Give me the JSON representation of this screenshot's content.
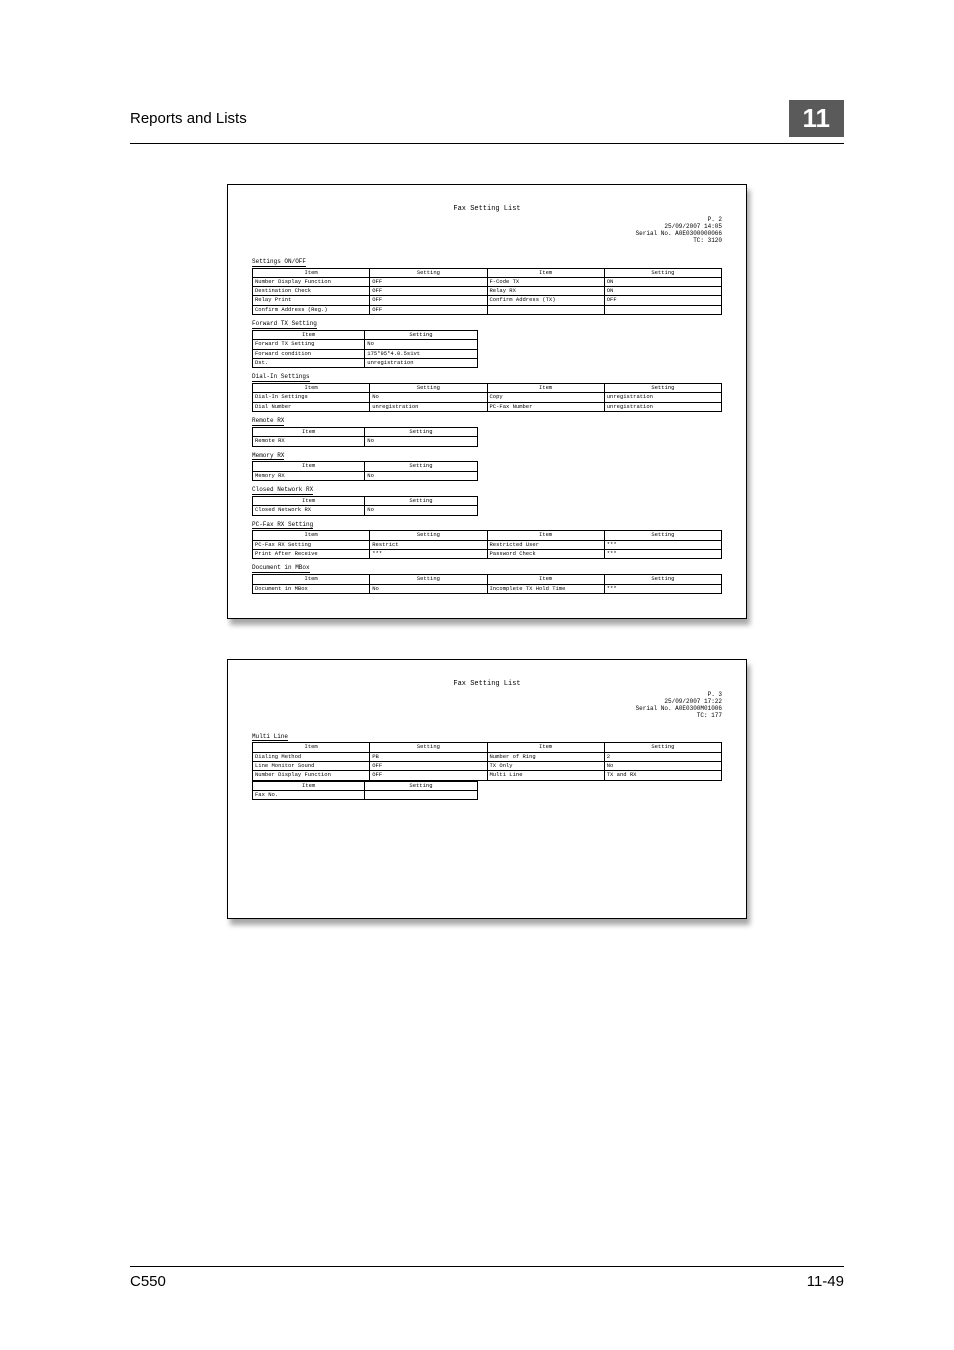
{
  "header": {
    "title": "Reports and Lists",
    "chapter": "11"
  },
  "footer": {
    "left": "C550",
    "right": "11-49"
  },
  "report1": {
    "title": "Fax Setting List",
    "page_meta": "P. 2\n25/09/2007 14:05\nSerial No.  A0E0300000066\nTC:      3120",
    "sections": [
      {
        "label": "Settings ON/OFF",
        "cols4": true,
        "headers": [
          "Item",
          "Setting",
          "Item",
          "Setting"
        ],
        "rows": [
          [
            "Number Display Function",
            "OFF",
            "F-Code TX",
            "ON"
          ],
          [
            "Destination Check",
            "OFF",
            "Relay RX",
            "ON"
          ],
          [
            "Relay Print",
            "OFF",
            "Confirm Address (TX)",
            "OFF"
          ],
          [
            "Confirm Address (Reg.)",
            "OFF",
            "",
            ""
          ]
        ]
      },
      {
        "label": "Forward TX Setting",
        "cols4": false,
        "headers": [
          "Item",
          "Setting"
        ],
        "rows": [
          [
            "Forward TX Setting",
            "No"
          ],
          [
            "Forward condition",
            "175*95*4.0.5s1vt"
          ],
          [
            "Dst.",
            "unregistration"
          ]
        ]
      },
      {
        "label": "Dial-In Settings",
        "cols4": true,
        "headers": [
          "Item",
          "Setting",
          "Item",
          "Setting"
        ],
        "rows": [
          [
            "Dial-In Settings",
            "No",
            "Copy",
            "unregistration"
          ],
          [
            "Dial Number",
            "unregistration",
            "PC-Fax Number",
            "unregistration"
          ]
        ]
      },
      {
        "label": "Remote RX",
        "cols4": false,
        "headers": [
          "Item",
          "Setting"
        ],
        "rows": [
          [
            "Remote RX",
            "No"
          ]
        ]
      },
      {
        "label": "Memory RX",
        "cols4": false,
        "headers": [
          "Item",
          "Setting"
        ],
        "rows": [
          [
            "Memory RX",
            "No"
          ]
        ]
      },
      {
        "label": "Closed Network RX",
        "cols4": false,
        "headers": [
          "Item",
          "Setting"
        ],
        "rows": [
          [
            "Closed Network RX",
            "No"
          ]
        ]
      },
      {
        "label": "PC-Fax RX Setting",
        "cols4": true,
        "headers": [
          "Item",
          "Setting",
          "Item",
          "Setting"
        ],
        "rows": [
          [
            "PC-Fax RX Setting",
            "Restrict",
            "Restricted User",
            "***"
          ],
          [
            "Print After Receive",
            "***",
            "Password Check",
            "***"
          ]
        ]
      },
      {
        "label": "Document in MBox",
        "cols4": true,
        "headers": [
          "Item",
          "Setting",
          "Item",
          "Setting"
        ],
        "rows": [
          [
            "Document in MBox",
            "No",
            "Incomplete TX Hold Time",
            "***"
          ]
        ]
      }
    ]
  },
  "report2": {
    "title": "Fax Setting List",
    "page_meta": "P. 3\n25/09/2007 17:22\nSerial No.  A0E0300M01006\nTC:        177",
    "sections": [
      {
        "label": "Multi Line",
        "cols4": true,
        "headers": [
          "Item",
          "Setting",
          "Item",
          "Setting"
        ],
        "rows": [
          [
            "Dialing Method",
            "PB",
            "Number of Ring",
            "2"
          ],
          [
            "Line Monitor Sound",
            "OFF",
            "TX Only",
            "No"
          ],
          [
            "Number Display Function",
            "OFF",
            "Multi Line",
            "TX and RX"
          ]
        ]
      },
      {
        "label": "",
        "cols4": false,
        "headers": [
          "Item",
          "Setting"
        ],
        "rows": [
          [
            "Fax No.",
            ""
          ]
        ]
      }
    ]
  }
}
